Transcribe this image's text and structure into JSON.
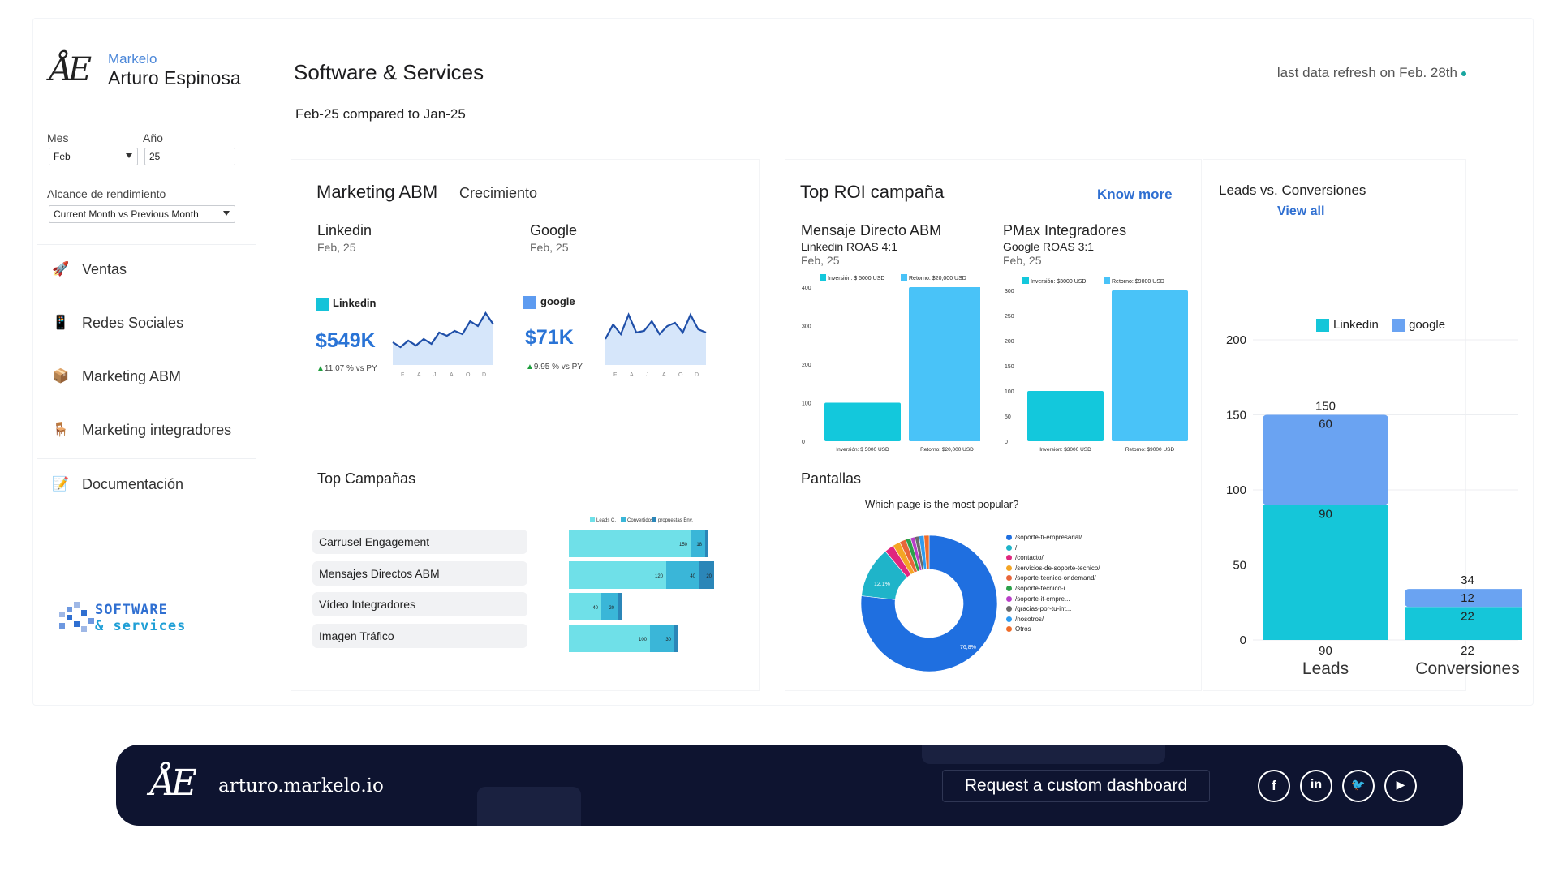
{
  "brand": {
    "logo": "ÅE",
    "org": "Markelo",
    "name": "Arturo Espinosa"
  },
  "filters": {
    "mes_label": "Mes",
    "mes_value": "Feb",
    "ano_label": "Año",
    "ano_value": "25",
    "alcance_label": "Alcance de rendimiento",
    "alcance_value": "Current Month vs Previous Month"
  },
  "nav": [
    {
      "label": "Ventas",
      "icon": "rocket-icon",
      "glyph": "🚀"
    },
    {
      "label": "Redes Sociales",
      "icon": "tablet-icon",
      "glyph": "📱"
    },
    {
      "label": "Marketing ABM",
      "icon": "box-icon",
      "glyph": "📦"
    },
    {
      "label": "Marketing integradores",
      "icon": "chair-icon",
      "glyph": "🪑"
    },
    {
      "label": "Documentación",
      "icon": "document-icon",
      "glyph": "📝"
    }
  ],
  "sidebar_logo": {
    "line1": "SOFTWARE",
    "line2": "& services"
  },
  "header": {
    "title": "Software & Services",
    "subtitle": "Feb-25 compared to Jan-25",
    "refresh": "last data refresh on Feb. 28th"
  },
  "abm": {
    "title": "Marketing ABM",
    "tag": "Crecimiento",
    "linkedin": {
      "name": "Linkedin",
      "date": "Feb, 25",
      "legend": "Linkedin",
      "value": "$549K",
      "delta": "11.07 % vs PY",
      "color": "#15c3d9",
      "spark": [
        48,
        42,
        50,
        44,
        52,
        46,
        60,
        56,
        62,
        58,
        74,
        68,
        84,
        70
      ]
    },
    "google": {
      "name": "Google",
      "date": "Feb, 25",
      "legend": "google",
      "value": "$71K",
      "delta": "9.95 % vs PY",
      "color": "#5d9bf0",
      "spark": [
        52,
        70,
        58,
        82,
        60,
        62,
        74,
        58,
        68,
        72,
        60,
        82,
        64,
        60
      ]
    },
    "months": [
      "F",
      "A",
      "J",
      "A",
      "O",
      "D"
    ]
  },
  "top_campanas": {
    "title": "Top Campañas",
    "legend": [
      "Leads C.",
      "Convertidos",
      "propuestas Env."
    ],
    "colors": [
      "#6fe0e8",
      "#3ab6d8",
      "#2b86b8"
    ],
    "rows": [
      {
        "label": "Carrusel Engagement",
        "values": [
          150,
          18,
          4
        ],
        "labels": [
          "150",
          "18",
          ""
        ]
      },
      {
        "label": "Mensajes Directos ABM",
        "values": [
          120,
          40,
          20
        ],
        "labels": [
          "120",
          "40",
          "20"
        ]
      },
      {
        "label": "Vídeo Integradores",
        "values": [
          40,
          20,
          5
        ],
        "labels": [
          "40",
          "20",
          ""
        ]
      },
      {
        "label": "Imagen Tráfico",
        "values": [
          100,
          30,
          4
        ],
        "labels": [
          "100",
          "30",
          ""
        ]
      }
    ]
  },
  "roi": {
    "title": "Top ROI campaña",
    "link": "Know more",
    "c1": {
      "name": "Mensaje Directo ABM",
      "sub": "Linkedin ROAS 4:1",
      "date": "Feb, 25",
      "legend": [
        "Inversión: $ 5000 USD",
        "Retorno: $20,000 USD"
      ],
      "ticks": [
        "0",
        "100",
        "200",
        "300",
        "400"
      ],
      "max": 400,
      "values": [
        100,
        400
      ],
      "xlabels": [
        "Inversión: $ 5000 USD",
        "Retorno: $20,000 USD"
      ]
    },
    "c2": {
      "name": "PMax Integradores",
      "sub": "Google ROAS 3:1",
      "date": "Feb, 25",
      "legend": [
        "Inversión: $3000 USD",
        "Retorno: $9000 USD"
      ],
      "ticks": [
        "0",
        "50",
        "100",
        "150",
        "200",
        "250",
        "300"
      ],
      "max": 300,
      "values": [
        100,
        300
      ],
      "xlabels": [
        "Inversión: $3000 USD",
        "Retorno: $9000 USD"
      ]
    },
    "colors": [
      "#13c8dc",
      "#49c3f8"
    ]
  },
  "pantallas": {
    "title": "Pantallas",
    "question": "Which page is the most popular?",
    "slices": [
      {
        "label": "/soporte-ti-empresarial/",
        "value": 76.8,
        "color": "#1f6fe0"
      },
      {
        "label": "/",
        "value": 12.1,
        "color": "#1fb4c9"
      },
      {
        "label": "/contacto/",
        "value": 2.2,
        "color": "#e0267e"
      },
      {
        "label": "/servicios-de-soporte-tecnico/",
        "value": 1.8,
        "color": "#f4a524"
      },
      {
        "label": "/soporte-tecnico-ondemand/",
        "value": 1.5,
        "color": "#e8653a"
      },
      {
        "label": "/soporte-tecnico-i...",
        "value": 1.2,
        "color": "#2ca14a"
      },
      {
        "label": "/soporte-it-empre...",
        "value": 1.0,
        "color": "#b83fc7"
      },
      {
        "label": "/gracias-por-tu-int...",
        "value": 1.0,
        "color": "#6b6b6b"
      },
      {
        "label": "/nosotros/",
        "value": 1.2,
        "color": "#2f9cf0"
      },
      {
        "label": "Otros",
        "value": 1.2,
        "color": "#f06d2a"
      }
    ],
    "pct_big": "76,8%",
    "pct_small": "12,1%"
  },
  "leads": {
    "title": "Leads vs. Conversiones",
    "link": "View all",
    "legend": [
      "Linkedin",
      "google"
    ],
    "colors": [
      "#15c6d9",
      "#6aa3f2"
    ]
  },
  "chart_data": {
    "type": "bar",
    "stacked": true,
    "categories": [
      "Leads",
      "Conversiones"
    ],
    "series": [
      {
        "name": "Linkedin",
        "values": [
          90,
          22
        ]
      },
      {
        "name": "google",
        "values": [
          60,
          12
        ]
      }
    ],
    "totals": [
      150,
      34
    ],
    "ylim": [
      0,
      200
    ],
    "yticks": [
      0,
      50,
      100,
      150,
      200
    ]
  },
  "footer": {
    "logo": "ÅE",
    "url": "arturo.markelo.io",
    "cta": "Request a custom dashboard",
    "social": [
      {
        "name": "facebook-icon",
        "glyph": "f"
      },
      {
        "name": "linkedin-icon",
        "glyph": "in"
      },
      {
        "name": "twitter-icon",
        "glyph": "🐦"
      },
      {
        "name": "youtube-icon",
        "glyph": "▶"
      }
    ]
  }
}
